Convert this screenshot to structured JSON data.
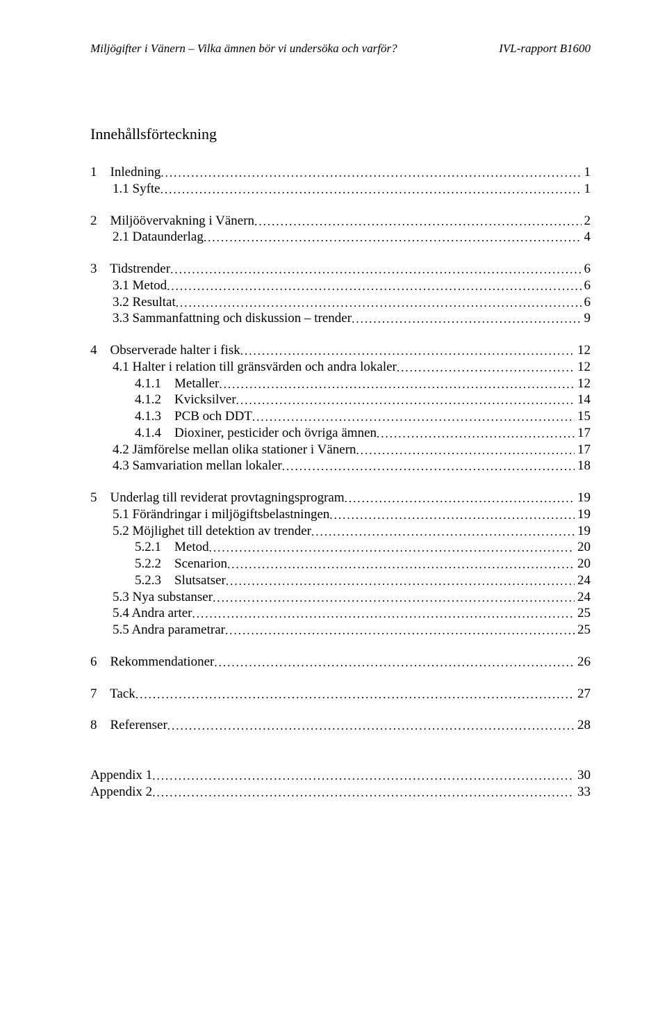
{
  "header": {
    "left": "Miljögifter i Vänern – Vilka ämnen bör vi undersöka och varför?",
    "right": "IVL-rapport B1600"
  },
  "toc_title": "Innehållsförteckning",
  "blocks": [
    [
      {
        "indent": 0,
        "label": "1    Inledning",
        "page": "1"
      },
      {
        "indent": 1,
        "label": "1.1 Syfte",
        "page": "1"
      }
    ],
    [
      {
        "indent": 0,
        "label": "2    Miljöövervakning i Vänern",
        "page": "2"
      },
      {
        "indent": 1,
        "label": "2.1 Dataunderlag",
        "page": "4"
      }
    ],
    [
      {
        "indent": 0,
        "label": "3    Tidstrender",
        "page": "6"
      },
      {
        "indent": 1,
        "label": "3.1 Metod",
        "page": "6"
      },
      {
        "indent": 1,
        "label": "3.2 Resultat",
        "page": "6"
      },
      {
        "indent": 1,
        "label": "3.3 Sammanfattning och diskussion – trender",
        "page": "9"
      }
    ],
    [
      {
        "indent": 0,
        "label": "4    Observerade halter i fisk",
        "page": "12"
      },
      {
        "indent": 1,
        "label": "4.1 Halter i relation till gränsvärden och andra lokaler",
        "page": "12"
      },
      {
        "indent": 2,
        "label": "4.1.1    Metaller",
        "page": "12"
      },
      {
        "indent": 2,
        "label": "4.1.2    Kvicksilver",
        "page": "14"
      },
      {
        "indent": 2,
        "label": "4.1.3    PCB och DDT",
        "page": "15"
      },
      {
        "indent": 2,
        "label": "4.1.4    Dioxiner, pesticider och övriga ämnen",
        "page": "17"
      },
      {
        "indent": 1,
        "label": "4.2 Jämförelse mellan olika stationer i Vänern",
        "page": "17"
      },
      {
        "indent": 1,
        "label": "4.3 Samvariation mellan lokaler",
        "page": "18"
      }
    ],
    [
      {
        "indent": 0,
        "label": "5    Underlag till reviderat provtagningsprogram",
        "page": "19"
      },
      {
        "indent": 1,
        "label": "5.1 Förändringar i miljögiftsbelastningen",
        "page": "19"
      },
      {
        "indent": 1,
        "label": "5.2 Möjlighet till detektion av trender",
        "page": "19"
      },
      {
        "indent": 2,
        "label": "5.2.1    Metod",
        "page": "20"
      },
      {
        "indent": 2,
        "label": "5.2.2    Scenarion",
        "page": "20"
      },
      {
        "indent": 2,
        "label": "5.2.3    Slutsatser",
        "page": "24"
      },
      {
        "indent": 1,
        "label": "5.3 Nya substanser",
        "page": "24"
      },
      {
        "indent": 1,
        "label": "5.4 Andra arter",
        "page": "25"
      },
      {
        "indent": 1,
        "label": "5.5 Andra parametrar",
        "page": "25"
      }
    ],
    [
      {
        "indent": 0,
        "label": "6    Rekommendationer",
        "page": "26"
      }
    ],
    [
      {
        "indent": 0,
        "label": "7    Tack",
        "page": "27"
      }
    ],
    [
      {
        "indent": 0,
        "label": "8    Referenser",
        "page": "28"
      }
    ]
  ],
  "appendix": [
    {
      "indent": 0,
      "label": "Appendix 1",
      "page": "30"
    },
    {
      "indent": 0,
      "label": "Appendix 2",
      "page": "33"
    }
  ]
}
